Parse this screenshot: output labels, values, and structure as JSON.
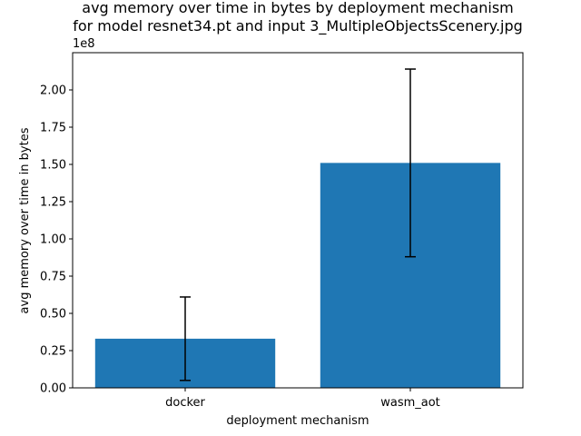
{
  "chart_data": {
    "type": "bar",
    "title_line1": "avg memory over time in bytes by deployment mechanism",
    "title_line2": "for model resnet34.pt and input 3_MultipleObjectsScenery.jpg",
    "xlabel": "deployment mechanism",
    "ylabel": "avg memory over time in bytes",
    "y_scale_label": "1e8",
    "categories": [
      "docker",
      "wasm_aot"
    ],
    "values": [
      33000000,
      151000000
    ],
    "error_low": [
      5000000,
      88000000
    ],
    "error_high": [
      61000000,
      214000000
    ],
    "ylim": [
      0,
      225000000
    ],
    "yticks": [
      0,
      25000000,
      50000000,
      75000000,
      100000000,
      125000000,
      150000000,
      175000000,
      200000000
    ],
    "ytick_labels": [
      "0.00",
      "0.25",
      "0.50",
      "0.75",
      "1.00",
      "1.25",
      "1.50",
      "1.75",
      "2.00"
    ],
    "bar_color": "#1f77b4",
    "errorbar_color": "#000000",
    "grid": false,
    "legend": "none"
  }
}
